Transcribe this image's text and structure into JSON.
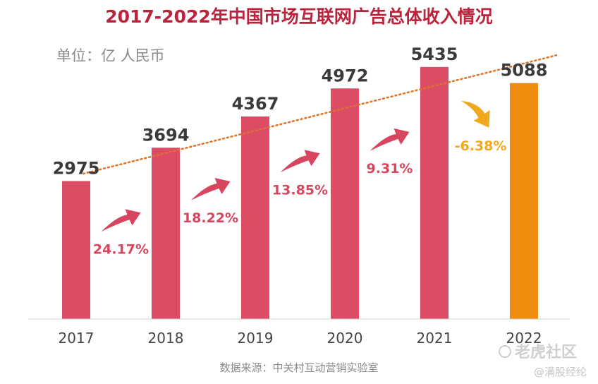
{
  "chart_data": {
    "type": "bar",
    "title": "2017-2022年中国市场互联网广告总体收入情况",
    "unit_label": "单位：亿 人民币",
    "categories": [
      "2017",
      "2018",
      "2019",
      "2020",
      "2021",
      "2022"
    ],
    "values": [
      2975,
      3694,
      4367,
      4972,
      5435,
      5088
    ],
    "value_labels": [
      "2975",
      "3694",
      "4367",
      "4972",
      "5435",
      "5088"
    ],
    "growth": [
      {
        "label": "24.17%",
        "direction": "up"
      },
      {
        "label": "18.22%",
        "direction": "up"
      },
      {
        "label": "13.85%",
        "direction": "up"
      },
      {
        "label": "9.31%",
        "direction": "up"
      },
      {
        "label": "-6.38%",
        "direction": "down"
      }
    ],
    "ylim": [
      0,
      6300
    ],
    "trendline": "dotted linear",
    "source": "数据来源：中关村互动营销实验室",
    "colors": {
      "bar": "#dc4d65",
      "highlight_bar": "#ee8c0d",
      "up_arrow": "#d8455f",
      "down_arrow": "#f2a81d",
      "trend": "#e0712a",
      "title": "#b8243c"
    }
  },
  "watermark": {
    "brand": "老虎社区",
    "author": "@满股经纶"
  }
}
